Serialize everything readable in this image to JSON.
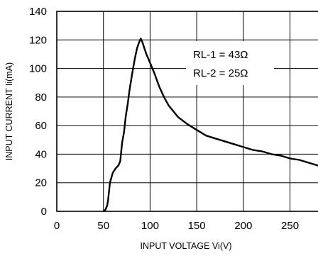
{
  "chart_data": {
    "type": "line",
    "title": "",
    "xlabel": "INPUT VOLTAGE Vi(V)",
    "ylabel": "INPUT CURRENT Ii(mA)",
    "xlim": [
      0,
      280
    ],
    "ylim": [
      0,
      140
    ],
    "grid": true,
    "x_ticks": [
      0,
      50,
      100,
      150,
      200,
      250
    ],
    "y_ticks": [
      0,
      20,
      40,
      60,
      80,
      100,
      120,
      140
    ],
    "x_tick_labels": [
      "0",
      "50",
      "100",
      "150",
      "200",
      "250"
    ],
    "y_tick_labels": [
      "0",
      "20",
      "40",
      "60",
      "80",
      "100",
      "120",
      "140"
    ],
    "annotations": [
      "RL-1 = 43Ω",
      "RL-2 = 25Ω"
    ],
    "series": [
      {
        "color": "#000000",
        "x": [
          50,
          52,
          54,
          55,
          57,
          60,
          63,
          66,
          68,
          70,
          72,
          74,
          76,
          78,
          80,
          82,
          84,
          86,
          88,
          90,
          92,
          94,
          96,
          100,
          105,
          110,
          115,
          120,
          125,
          130,
          140,
          150,
          160,
          170,
          180,
          190,
          200,
          210,
          220,
          230,
          240,
          250,
          260,
          270,
          280
        ],
        "y": [
          0,
          1,
          4,
          8,
          20,
          27,
          30,
          32,
          35,
          48,
          55,
          67,
          75,
          85,
          93,
          101,
          108,
          114,
          118,
          121,
          118,
          114,
          110,
          104,
          96,
          87,
          80,
          74,
          70,
          66,
          61,
          57,
          53,
          51,
          49,
          47,
          45,
          43,
          42,
          40,
          39,
          37,
          36,
          34,
          32
        ]
      }
    ]
  }
}
